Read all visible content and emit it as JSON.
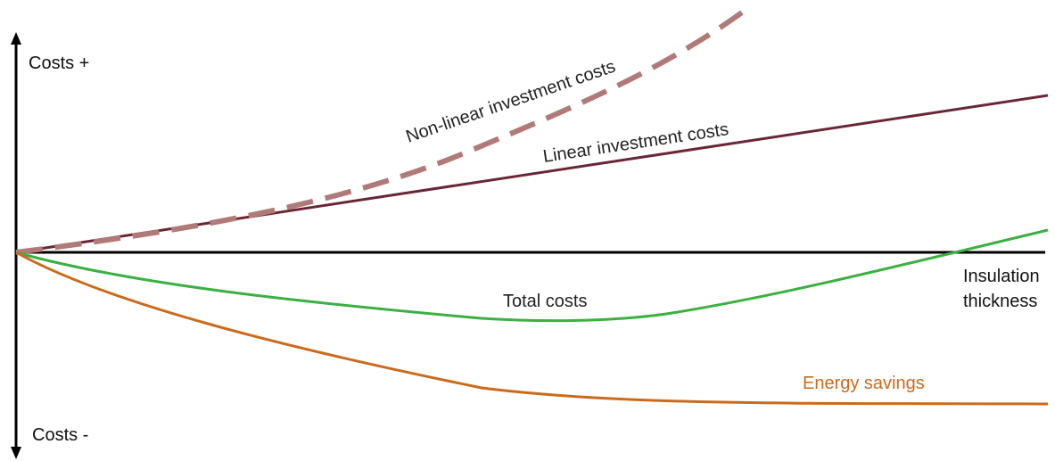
{
  "diagram": {
    "y_axis": {
      "top_label": "Costs +",
      "bottom_label": "Costs -"
    },
    "x_axis": {
      "label_line1": "Insulation",
      "label_line2": "thickness"
    },
    "curves": [
      {
        "id": "nonlinear",
        "label": "Non-linear investment costs",
        "color": "#b07a78",
        "style": "dashed"
      },
      {
        "id": "linear",
        "label": "Linear investment costs",
        "color": "#6b2636",
        "style": "solid"
      },
      {
        "id": "total",
        "label": "Total costs",
        "color": "#3cb043",
        "style": "solid"
      },
      {
        "id": "energy",
        "label": "Energy savings",
        "color": "#cc6a1c",
        "style": "solid"
      }
    ]
  }
}
